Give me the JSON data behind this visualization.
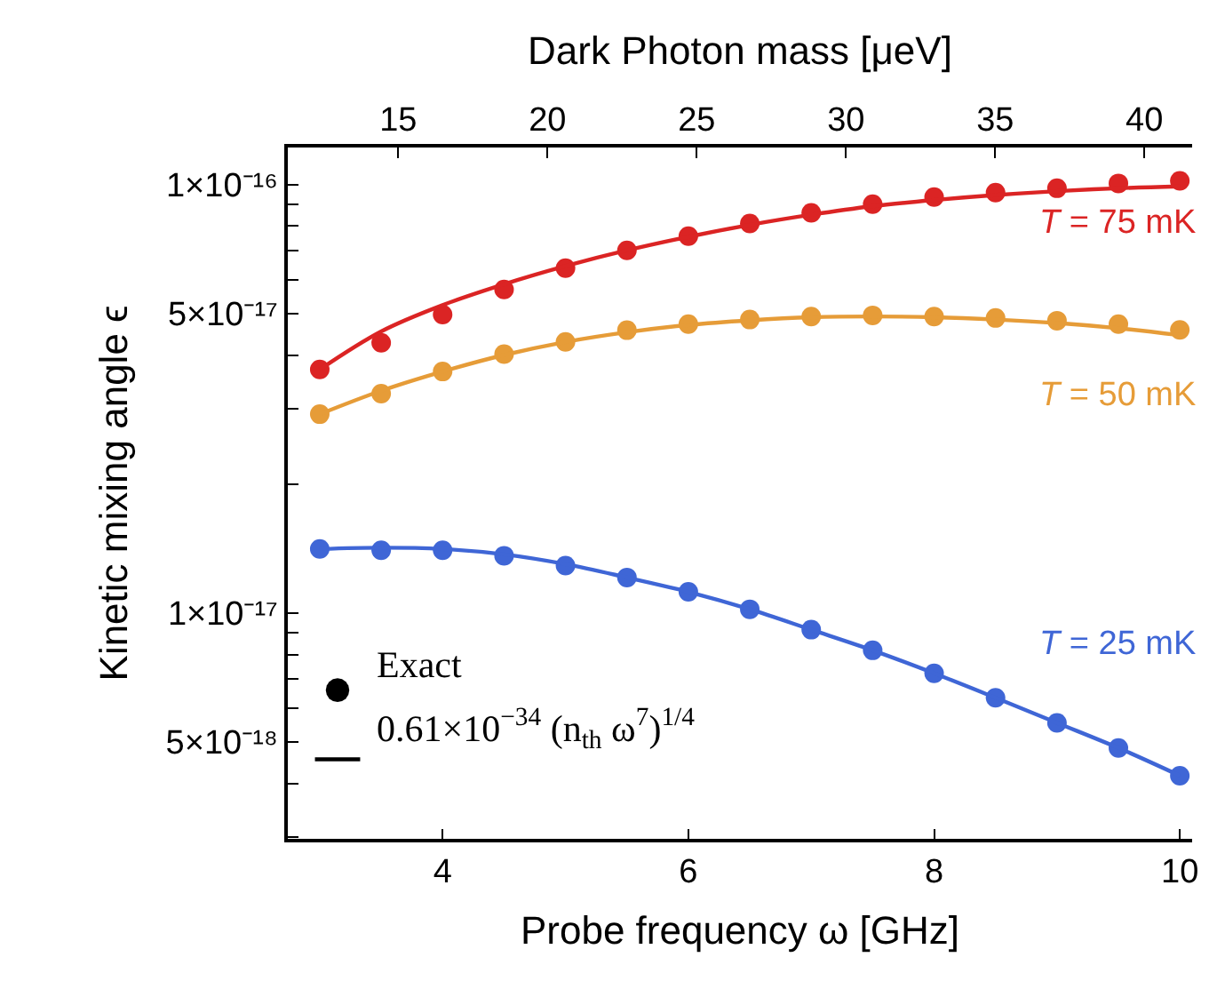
{
  "chart_data": {
    "type": "scatter",
    "xlabel": "Probe frequency ω [GHz]",
    "ylabel": "Kinetic mixing angle ϵ",
    "x2label": "Dark Photon mass [μeV]",
    "x": [
      3,
      3.5,
      4,
      4.5,
      5,
      5.5,
      6,
      6.5,
      7,
      7.5,
      8,
      8.5,
      9,
      9.5,
      10
    ],
    "series": [
      {
        "name": "T = 75 mK",
        "color": "#db2424",
        "values": [
          3.7e-17,
          4.27e-17,
          4.97e-17,
          5.69e-17,
          6.38e-17,
          7.02e-17,
          7.58e-17,
          8.11e-17,
          8.59e-17,
          9e-17,
          9.35e-17,
          9.57e-17,
          9.8e-17,
          1.006e-16,
          1.02e-16
        ]
      },
      {
        "type": "line",
        "marker": "none",
        "color": "#db2424",
        "values": [
          3.7e-17,
          4.54e-17,
          5.23e-17,
          5.85e-17,
          6.45e-17,
          7.02e-17,
          7.55e-17,
          8.05e-17,
          8.5e-17,
          8.9e-17,
          9.2e-17,
          9.45e-17,
          9.65e-17,
          9.8e-17,
          9.9e-17
        ]
      },
      {
        "name": "T = 50 mK",
        "color": "#e69c38",
        "values": [
          2.91e-17,
          3.25e-17,
          3.66e-17,
          4.02e-17,
          4.29e-17,
          4.57e-17,
          4.72e-17,
          4.84e-17,
          4.92e-17,
          4.95e-17,
          4.92e-17,
          4.88e-17,
          4.81e-17,
          4.72e-17,
          4.58e-17
        ]
      },
      {
        "type": "line",
        "marker": "none",
        "color": "#e69c38",
        "values": [
          2.91e-17,
          3.3e-17,
          3.66e-17,
          4e-17,
          4.29e-17,
          4.52e-17,
          4.7e-17,
          4.82e-17,
          4.9e-17,
          4.92e-17,
          4.9e-17,
          4.84e-17,
          4.75e-17,
          4.62e-17,
          4.45e-17
        ]
      },
      {
        "name": "T = 25 mK",
        "color": "#3f66d6",
        "values": [
          1.41e-17,
          1.4e-17,
          1.4e-17,
          1.36e-17,
          1.29e-17,
          1.21e-17,
          1.12e-17,
          1.02e-17,
          9.14e-18,
          8.18e-18,
          7.23e-18,
          6.34e-18,
          5.54e-18,
          4.84e-18,
          4.17e-18
        ]
      },
      {
        "type": "line",
        "marker": "none",
        "color": "#3f66d6",
        "values": [
          1.41e-17,
          1.42e-17,
          1.41e-17,
          1.37e-17,
          1.3e-17,
          1.21e-17,
          1.12e-17,
          1.02e-17,
          9.14e-18,
          8.18e-18,
          7.23e-18,
          6.34e-18,
          5.54e-18,
          4.84e-18,
          4.17e-18
        ]
      }
    ],
    "annotations": [
      "Exact",
      "0.61×10$^{−34}$ (n$_{th}$ ω$^{7}$)$^{1/4}$"
    ],
    "log": "y",
    "grid": false,
    "marker": "circle",
    "line_style": "solid",
    "xlim": [
      2.74,
      10.1
    ],
    "xticks": [
      4,
      6,
      8,
      10
    ],
    "x2lim": [
      11.3,
      41.6
    ],
    "x2ticks": [
      15,
      20,
      25,
      30,
      35,
      40
    ],
    "ylim": [
      2.97e-18,
      1.22e-16
    ],
    "yticks": [
      {
        "value": 3e-18,
        "label": null
      },
      {
        "value": 4e-18,
        "label": null
      },
      {
        "value": 5e-18,
        "label": "5×10⁻¹⁸"
      },
      {
        "value": 6e-18,
        "label": null
      },
      {
        "value": 7e-18,
        "label": null
      },
      {
        "value": 8e-18,
        "label": null
      },
      {
        "value": 9e-18,
        "label": null
      },
      {
        "value": 1e-17,
        "label": "1×10⁻¹⁷"
      },
      {
        "value": 2e-17,
        "label": null
      },
      {
        "value": 3e-17,
        "label": null
      },
      {
        "value": 4e-17,
        "label": null
      },
      {
        "value": 5e-17,
        "label": "5×10⁻¹⁷"
      },
      {
        "value": 6e-17,
        "label": null
      },
      {
        "value": 7e-17,
        "label": null
      },
      {
        "value": 8e-17,
        "label": null
      },
      {
        "value": 9e-17,
        "label": null
      },
      {
        "value": 1e-16,
        "label": "1×10⁻¹⁶"
      }
    ]
  }
}
